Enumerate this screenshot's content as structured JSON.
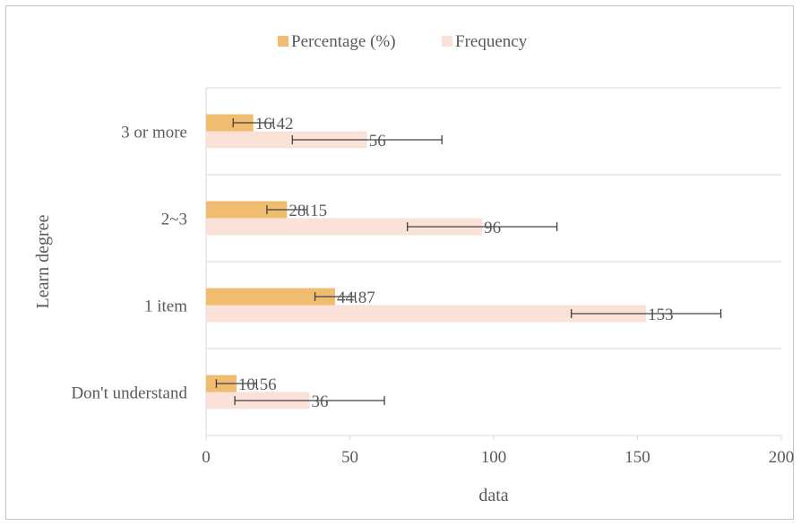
{
  "chart_data": {
    "type": "bar",
    "orientation": "horizontal",
    "categories": [
      "Don't understand",
      "1 item",
      "2~3",
      "3 or more"
    ],
    "series": [
      {
        "name": "Percentage (%)",
        "values": [
          10.56,
          44.87,
          28.15,
          16.42
        ],
        "data_labels": [
          "10.56",
          "44.87",
          "28.15",
          "16.42"
        ],
        "error": [
          7,
          7,
          7,
          7
        ],
        "color": "#f0bc6f"
      },
      {
        "name": "Frequency",
        "values": [
          36,
          153,
          96,
          56
        ],
        "data_labels": [
          "36",
          "153",
          "96",
          "56"
        ],
        "error": [
          26,
          26,
          26,
          26
        ],
        "color": "#fae2d8"
      }
    ],
    "xlabel": "data",
    "ylabel": "Learn degree",
    "xlim": [
      0,
      200
    ],
    "xticks": [
      "0",
      "50",
      "100",
      "150",
      "200"
    ],
    "grid": true,
    "legend_position": "top",
    "colors": {
      "axis": "#d9d9d9",
      "text": "#595959",
      "errorbar": "#404040",
      "frame": "#b7c9c9"
    }
  }
}
